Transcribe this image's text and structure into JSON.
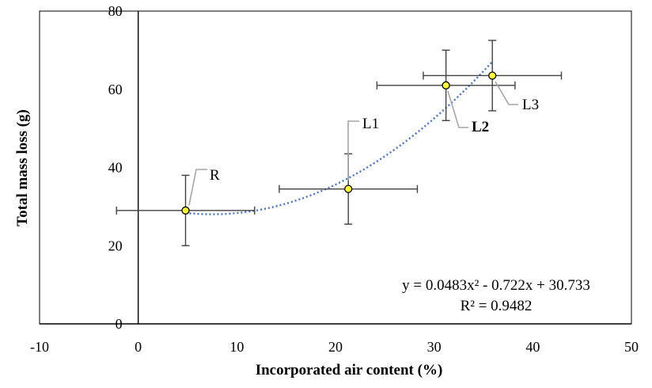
{
  "chart_data": {
    "type": "scatter",
    "title": "",
    "xlabel": "Incorporated air content (%)",
    "ylabel": "Total mass loss (g)",
    "xlim": [
      -10,
      50
    ],
    "ylim": [
      0,
      80
    ],
    "x_ticks": [
      -10,
      0,
      10,
      20,
      30,
      40,
      50
    ],
    "y_ticks": [
      0,
      20,
      40,
      60,
      80
    ],
    "x_tick_labels": [
      "-10",
      "0",
      "10",
      "20",
      "30",
      "40",
      "50"
    ],
    "y_tick_labels": [
      "0",
      "20",
      "40",
      "60",
      "80"
    ],
    "grid": false,
    "marker_color": "#ffff33",
    "errorbar_color": "#404040",
    "trendline_color": "#4472c4",
    "points": [
      {
        "label": "R",
        "x": 4.8,
        "y": 29.0,
        "x_err": 7.0,
        "y_err": 9.0,
        "bold": false
      },
      {
        "label": "L1",
        "x": 21.3,
        "y": 34.5,
        "x_err": 7.0,
        "y_err": 9.0,
        "bold": false
      },
      {
        "label": "L2",
        "x": 31.2,
        "y": 61.0,
        "x_err": 7.0,
        "y_err": 9.0,
        "bold": true
      },
      {
        "label": "L3",
        "x": 35.9,
        "y": 63.5,
        "x_err": 7.0,
        "y_err": 9.0,
        "bold": false
      }
    ],
    "trendline": {
      "type": "polynomial",
      "coefficients": [
        0.0483,
        -0.722,
        30.733
      ],
      "x_range": [
        4.8,
        35.9
      ],
      "equation": "y = 0.0483x² - 0.722x + 30.733",
      "r_squared": "R² = 0.9482"
    }
  }
}
